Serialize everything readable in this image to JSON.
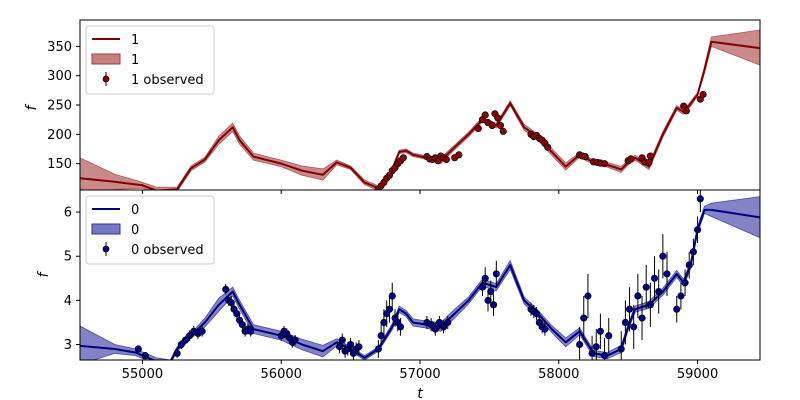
{
  "chart_data": [
    {
      "type": "line",
      "panel": "top",
      "xlabel": "",
      "ylabel": "f",
      "xlim": [
        54550,
        59450
      ],
      "ylim": [
        105,
        395
      ],
      "yticks": [
        150,
        200,
        250,
        300,
        350
      ],
      "legend_position": "upper-left",
      "colors": {
        "line": "#800000",
        "band": "#a93c3c",
        "marker": "#8b0000"
      },
      "legend": [
        {
          "kind": "line",
          "label": "1"
        },
        {
          "kind": "band",
          "label": "1"
        },
        {
          "kind": "marker",
          "label": "1 observed"
        }
      ],
      "model": {
        "x": [
          54550,
          54800,
          55000,
          55100,
          55250,
          55350,
          55450,
          55550,
          55650,
          55700,
          55800,
          56000,
          56150,
          56300,
          56400,
          56500,
          56600,
          56700,
          56800,
          56850,
          56900,
          56950,
          57050,
          57150,
          57250,
          57350,
          57450,
          57550,
          57650,
          57750,
          57850,
          57950,
          58050,
          58150,
          58250,
          58350,
          58450,
          58500,
          58550,
          58650,
          58750,
          58850,
          58900,
          58950,
          59000,
          59050,
          59100,
          59450
        ],
        "y": [
          125,
          119,
          113,
          104,
          106,
          142,
          157,
          190,
          212,
          190,
          162,
          150,
          138,
          131,
          152,
          143,
          118,
          108,
          140,
          170,
          172,
          165,
          160,
          155,
          178,
          200,
          225,
          215,
          253,
          212,
          195,
          170,
          145,
          165,
          152,
          148,
          140,
          152,
          160,
          145,
          200,
          245,
          238,
          252,
          268,
          310,
          358,
          347
        ],
        "lower": [
          95,
          106,
          108,
          98,
          102,
          138,
          153,
          183,
          205,
          183,
          156,
          145,
          130,
          122,
          148,
          140,
          114,
          104,
          137,
          167,
          169,
          162,
          157,
          150,
          174,
          196,
          221,
          211,
          249,
          207,
          190,
          164,
          139,
          161,
          148,
          144,
          135,
          148,
          156,
          140,
          195,
          241,
          234,
          248,
          265,
          304,
          350,
          318
        ],
        "upper": [
          160,
          132,
          118,
          110,
          110,
          146,
          161,
          197,
          219,
          197,
          168,
          156,
          146,
          141,
          156,
          146,
          122,
          112,
          143,
          173,
          175,
          168,
          163,
          160,
          182,
          204,
          229,
          219,
          257,
          217,
          200,
          176,
          151,
          169,
          156,
          152,
          145,
          156,
          164,
          150,
          205,
          249,
          242,
          256,
          271,
          316,
          366,
          378
        ]
      },
      "observed": {
        "x": [
          56700,
          56720,
          56740,
          56760,
          56780,
          56800,
          56820,
          56840,
          56860,
          56880,
          57050,
          57070,
          57090,
          57110,
          57130,
          57150,
          57170,
          57190,
          57250,
          57280,
          57420,
          57450,
          57470,
          57490,
          57520,
          57540,
          57560,
          57580,
          57600,
          57800,
          57820,
          57840,
          57860,
          57880,
          57900,
          57920,
          58150,
          58170,
          58190,
          58250,
          58280,
          58300,
          58330,
          58500,
          58520,
          58600,
          58620,
          58650,
          58660,
          58900,
          58920,
          59020,
          59040
        ],
        "y": [
          106,
          112,
          118,
          125,
          130,
          138,
          143,
          150,
          155,
          160,
          162,
          158,
          157,
          160,
          155,
          163,
          160,
          157,
          160,
          165,
          210,
          225,
          233,
          220,
          215,
          235,
          228,
          215,
          205,
          200,
          196,
          198,
          193,
          190,
          185,
          178,
          165,
          163,
          162,
          153,
          152,
          151,
          150,
          155,
          158,
          160,
          153,
          152,
          163,
          248,
          240,
          260,
          268
        ]
      }
    },
    {
      "type": "line",
      "panel": "bottom",
      "xlabel": "t",
      "ylabel": "f",
      "xlim": [
        54550,
        59450
      ],
      "ylim": [
        2.65,
        6.5
      ],
      "xticks": [
        55000,
        56000,
        57000,
        58000,
        59000
      ],
      "yticks": [
        3,
        4,
        5,
        6
      ],
      "legend_position": "upper-left",
      "colors": {
        "line": "#00007f",
        "band": "#3030a0",
        "marker": "#00008b"
      },
      "legend": [
        {
          "kind": "line",
          "label": "0"
        },
        {
          "kind": "band",
          "label": "0"
        },
        {
          "kind": "marker",
          "label": "0 observed"
        }
      ],
      "model": {
        "x": [
          54550,
          54800,
          54950,
          55100,
          55200,
          55250,
          55350,
          55450,
          55550,
          55650,
          55700,
          55800,
          56000,
          56150,
          56300,
          56400,
          56500,
          56600,
          56700,
          56800,
          56850,
          56900,
          56950,
          57050,
          57150,
          57250,
          57350,
          57450,
          57550,
          57650,
          57750,
          57850,
          57950,
          58050,
          58150,
          58250,
          58350,
          58450,
          58500,
          58550,
          58650,
          58750,
          58850,
          58900,
          58950,
          59000,
          59050,
          59100,
          59450
        ],
        "y": [
          2.97,
          2.9,
          2.82,
          2.62,
          2.6,
          2.9,
          3.2,
          3.5,
          3.9,
          4.2,
          3.9,
          3.35,
          3.2,
          3.0,
          2.85,
          3.05,
          2.9,
          2.7,
          2.9,
          3.4,
          3.8,
          3.7,
          3.5,
          3.45,
          3.4,
          3.7,
          4.0,
          4.4,
          4.3,
          4.8,
          4.0,
          3.7,
          3.35,
          3.05,
          3.3,
          2.8,
          2.75,
          2.9,
          3.4,
          3.8,
          3.9,
          4.2,
          4.6,
          4.4,
          4.8,
          5.6,
          6.05,
          6.05,
          5.88
        ],
        "lower": [
          2.55,
          2.8,
          2.75,
          2.55,
          2.55,
          2.85,
          3.15,
          3.4,
          3.75,
          4.1,
          3.8,
          3.25,
          3.1,
          2.88,
          2.72,
          2.97,
          2.85,
          2.65,
          2.85,
          3.33,
          3.73,
          3.63,
          3.42,
          3.37,
          3.3,
          3.6,
          3.92,
          4.32,
          4.22,
          4.7,
          3.92,
          3.62,
          3.27,
          2.95,
          3.22,
          2.73,
          2.68,
          2.82,
          3.33,
          3.73,
          3.82,
          4.12,
          4.52,
          4.32,
          4.72,
          5.52,
          5.97,
          5.9,
          5.42
        ],
        "upper": [
          3.42,
          3.0,
          2.9,
          2.7,
          2.65,
          2.95,
          3.25,
          3.6,
          4.05,
          4.3,
          4.0,
          3.45,
          3.3,
          3.12,
          2.98,
          3.13,
          2.95,
          2.75,
          2.95,
          3.47,
          3.87,
          3.77,
          3.58,
          3.53,
          3.5,
          3.8,
          4.08,
          4.48,
          4.38,
          4.9,
          4.08,
          3.78,
          3.43,
          3.15,
          3.38,
          2.87,
          2.82,
          2.98,
          3.47,
          3.87,
          3.98,
          4.28,
          4.68,
          4.48,
          4.88,
          5.68,
          6.13,
          6.2,
          6.35
        ]
      },
      "observed": {
        "x": [
          54970,
          55020,
          55250,
          55280,
          55310,
          55340,
          55370,
          55400,
          55430,
          55600,
          55620,
          55640,
          55660,
          55680,
          55700,
          55720,
          55740,
          55760,
          55780,
          56000,
          56020,
          56040,
          56060,
          56080,
          56100,
          56420,
          56440,
          56460,
          56480,
          56500,
          56520,
          56540,
          56560,
          56700,
          56720,
          56740,
          56760,
          56780,
          56800,
          56820,
          56840,
          56860,
          57050,
          57080,
          57110,
          57140,
          57170,
          57200,
          57450,
          57470,
          57490,
          57510,
          57530,
          57550,
          57800,
          57820,
          57840,
          57860,
          57880,
          57900,
          58150,
          58180,
          58210,
          58240,
          58270,
          58300,
          58330,
          58360,
          58450,
          58480,
          58510,
          58540,
          58570,
          58600,
          58630,
          58660,
          58690,
          58720,
          58750,
          58780,
          58850,
          58880,
          58910,
          58940,
          58970,
          59000,
          59020
        ],
        "y": [
          2.9,
          2.75,
          2.8,
          3.0,
          3.1,
          3.2,
          3.3,
          3.25,
          3.3,
          4.25,
          4.0,
          3.95,
          3.8,
          3.7,
          3.55,
          3.45,
          3.3,
          3.35,
          3.3,
          3.2,
          3.3,
          3.25,
          3.15,
          3.05,
          3.1,
          2.95,
          3.1,
          2.85,
          2.9,
          3.0,
          2.8,
          2.9,
          2.95,
          2.9,
          3.2,
          3.5,
          3.7,
          3.8,
          4.1,
          3.6,
          3.5,
          3.4,
          3.5,
          3.45,
          3.35,
          3.5,
          3.4,
          3.5,
          4.3,
          4.5,
          4.0,
          4.2,
          3.9,
          4.6,
          3.8,
          3.75,
          3.7,
          3.5,
          3.4,
          3.35,
          3.0,
          3.6,
          4.1,
          2.8,
          2.95,
          3.3,
          2.75,
          3.2,
          2.9,
          3.5,
          3.8,
          3.4,
          4.1,
          3.6,
          4.3,
          3.9,
          4.5,
          4.2,
          5.0,
          4.6,
          3.8,
          4.1,
          4.4,
          4.8,
          5.1,
          5.6,
          6.3
        ],
        "err": [
          0.08,
          0.08,
          0.1,
          0.1,
          0.1,
          0.12,
          0.12,
          0.12,
          0.12,
          0.12,
          0.12,
          0.15,
          0.15,
          0.12,
          0.12,
          0.12,
          0.12,
          0.12,
          0.12,
          0.12,
          0.12,
          0.12,
          0.12,
          0.12,
          0.12,
          0.15,
          0.15,
          0.15,
          0.15,
          0.15,
          0.15,
          0.15,
          0.15,
          0.2,
          0.25,
          0.3,
          0.3,
          0.3,
          0.3,
          0.2,
          0.2,
          0.2,
          0.15,
          0.15,
          0.15,
          0.15,
          0.15,
          0.15,
          0.2,
          0.25,
          0.25,
          0.25,
          0.25,
          0.3,
          0.15,
          0.15,
          0.15,
          0.15,
          0.15,
          0.15,
          0.4,
          0.5,
          0.5,
          0.4,
          0.4,
          0.4,
          0.4,
          0.4,
          0.4,
          0.5,
          0.5,
          0.5,
          0.5,
          0.5,
          0.5,
          0.5,
          0.5,
          0.5,
          0.5,
          0.5,
          0.3,
          0.3,
          0.3,
          0.3,
          0.3,
          0.3,
          0.3
        ]
      }
    }
  ]
}
